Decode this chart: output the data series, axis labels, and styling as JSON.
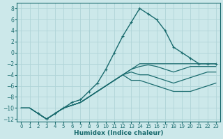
{
  "xlabel": "Humidex (Indice chaleur)",
  "xlim": [
    -0.5,
    23.5
  ],
  "ylim": [
    -12.5,
    9
  ],
  "xticks": [
    0,
    1,
    2,
    3,
    4,
    5,
    6,
    7,
    8,
    9,
    10,
    11,
    12,
    13,
    14,
    15,
    16,
    17,
    18,
    19,
    20,
    21,
    22,
    23
  ],
  "yticks": [
    -12,
    -10,
    -8,
    -6,
    -4,
    -2,
    0,
    2,
    4,
    6,
    8
  ],
  "bg_color": "#cce8ea",
  "grid_color": "#b0d4d8",
  "line_color": "#1a6b6e",
  "line1_x": [
    0,
    1,
    2,
    3,
    4,
    5,
    6,
    7,
    8,
    9,
    10,
    11,
    12,
    13,
    14,
    15,
    16,
    17,
    18,
    19,
    20,
    21,
    22,
    23
  ],
  "line1_y": [
    -10,
    -10,
    -11,
    -12,
    -11,
    -10,
    -9.5,
    -9,
    -8,
    -7,
    -6,
    -5,
    -4,
    -3,
    -2,
    -2,
    -2,
    -2,
    -2,
    -2,
    -2,
    -2,
    -2,
    -2
  ],
  "line2_x": [
    0,
    1,
    2,
    3,
    4,
    5,
    6,
    7,
    8,
    9,
    10,
    11,
    12,
    13,
    14,
    15,
    16,
    17,
    18,
    19,
    20,
    21,
    22,
    23
  ],
  "line2_y": [
    -10,
    -10,
    -11,
    -12,
    -11,
    -10,
    -9.5,
    -9,
    -8,
    -7,
    -6,
    -5,
    -4,
    -3,
    -2.5,
    -2.2,
    -2.5,
    -3,
    -3.5,
    -3,
    -2.5,
    -2.5,
    -2.5,
    -2.5
  ],
  "line3_x": [
    0,
    1,
    2,
    3,
    4,
    5,
    6,
    7,
    8,
    9,
    10,
    11,
    12,
    13,
    14,
    15,
    16,
    17,
    18,
    19,
    20,
    21,
    22,
    23
  ],
  "line3_y": [
    -10,
    -10,
    -11,
    -12,
    -11,
    -10,
    -9.5,
    -9,
    -8,
    -7,
    -6,
    -5,
    -4,
    -3.5,
    -4,
    -4,
    -4.5,
    -5,
    -5.5,
    -5,
    -4.5,
    -4,
    -3.5,
    -3.5
  ],
  "line4_x": [
    0,
    1,
    2,
    3,
    4,
    5,
    6,
    7,
    8,
    9,
    10,
    11,
    12,
    13,
    14,
    15,
    16,
    17,
    18,
    19,
    20,
    21,
    22,
    23
  ],
  "line4_y": [
    -10,
    -10,
    -11,
    -12,
    -11,
    -10,
    -9.5,
    -9,
    -8,
    -7,
    -6,
    -5,
    -4,
    -5,
    -5,
    -5.5,
    -6,
    -6.5,
    -7,
    -7,
    -7,
    -6.5,
    -6,
    -5.5
  ],
  "main_x": [
    2,
    3,
    4,
    5,
    6,
    7,
    8,
    9,
    10,
    11,
    12,
    13,
    14,
    15,
    16,
    17,
    18,
    19,
    20,
    21,
    22,
    23
  ],
  "main_y": [
    -11,
    -12,
    -11,
    -10,
    -9,
    -8.5,
    -7,
    -5.5,
    -3,
    0,
    3,
    5.5,
    8,
    7,
    6,
    4,
    1,
    0,
    -1,
    -2,
    -2,
    -2
  ]
}
